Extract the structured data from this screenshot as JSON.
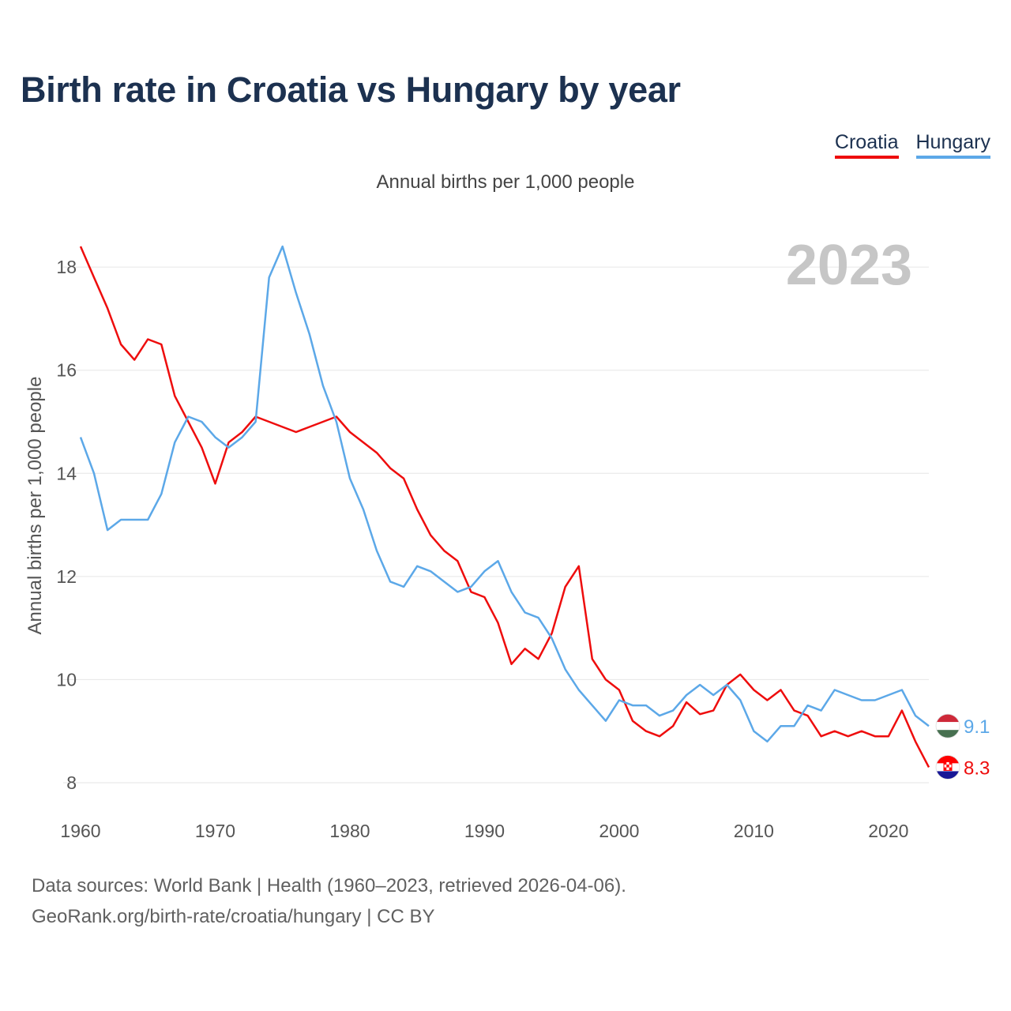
{
  "title": "Birth rate in Croatia vs Hungary by year",
  "legend": {
    "croatia": "Croatia",
    "hungary": "Hungary"
  },
  "footer": {
    "line1": "Data sources: World Bank | Health (1960–2023, retrieved 2026-04-06).",
    "line2": "GeoRank.org/birth-rate/croatia/hungary | CC BY"
  },
  "chart_data": {
    "type": "line",
    "title": "Birth rate in Croatia vs Hungary by year",
    "subtitle": "Annual births per 1,000 people",
    "ylabel": "Annual births per 1,000 people",
    "xlabel": "",
    "year_label": "2023",
    "xlim": [
      1960,
      2023
    ],
    "ylim": [
      8,
      18.4
    ],
    "x_ticks": [
      1960,
      1970,
      1980,
      1990,
      2000,
      2010,
      2020
    ],
    "y_ticks": [
      8,
      10,
      12,
      14,
      16,
      18
    ],
    "grid": true,
    "x": [
      1960,
      1961,
      1962,
      1963,
      1964,
      1965,
      1966,
      1967,
      1968,
      1969,
      1970,
      1971,
      1972,
      1973,
      1974,
      1975,
      1976,
      1977,
      1978,
      1979,
      1980,
      1981,
      1982,
      1983,
      1984,
      1985,
      1986,
      1987,
      1988,
      1989,
      1990,
      1991,
      1992,
      1993,
      1994,
      1995,
      1996,
      1997,
      1998,
      1999,
      2000,
      2001,
      2002,
      2003,
      2004,
      2005,
      2006,
      2007,
      2008,
      2009,
      2010,
      2011,
      2012,
      2013,
      2014,
      2015,
      2016,
      2017,
      2018,
      2019,
      2020,
      2021,
      2022,
      2023
    ],
    "series": [
      {
        "name": "Croatia",
        "color": "#ee0d0d",
        "end_label": "8.3",
        "values": [
          18.4,
          17.8,
          17.2,
          16.5,
          16.2,
          16.6,
          16.5,
          15.5,
          15.0,
          14.5,
          13.8,
          14.6,
          14.8,
          15.1,
          15.0,
          14.9,
          14.8,
          14.9,
          15.0,
          15.1,
          14.8,
          14.6,
          14.4,
          14.1,
          13.9,
          13.3,
          12.8,
          12.5,
          12.3,
          11.7,
          11.6,
          11.1,
          10.3,
          10.6,
          10.4,
          10.9,
          11.8,
          12.2,
          10.4,
          10.0,
          9.8,
          9.2,
          9.0,
          8.9,
          9.1,
          9.56,
          9.33,
          9.4,
          9.9,
          10.1,
          9.8,
          9.6,
          9.8,
          9.4,
          9.3,
          8.9,
          9.0,
          8.9,
          9.0,
          8.9,
          8.9,
          9.4,
          8.8,
          8.3
        ]
      },
      {
        "name": "Hungary",
        "color": "#5ca8e8",
        "end_label": "9.1",
        "values": [
          14.7,
          14.0,
          12.9,
          13.1,
          13.1,
          13.1,
          13.6,
          14.6,
          15.1,
          15.0,
          14.7,
          14.5,
          14.7,
          15.0,
          17.8,
          18.4,
          17.5,
          16.7,
          15.7,
          15.0,
          13.9,
          13.3,
          12.5,
          11.9,
          11.8,
          12.2,
          12.1,
          11.9,
          11.7,
          11.8,
          12.1,
          12.3,
          11.7,
          11.3,
          11.2,
          10.8,
          10.2,
          9.8,
          9.5,
          9.2,
          9.6,
          9.5,
          9.5,
          9.3,
          9.4,
          9.7,
          9.9,
          9.7,
          9.9,
          9.6,
          9.0,
          8.8,
          9.1,
          9.1,
          9.5,
          9.4,
          9.8,
          9.7,
          9.6,
          9.6,
          9.7,
          9.8,
          9.3,
          9.1
        ]
      }
    ]
  }
}
